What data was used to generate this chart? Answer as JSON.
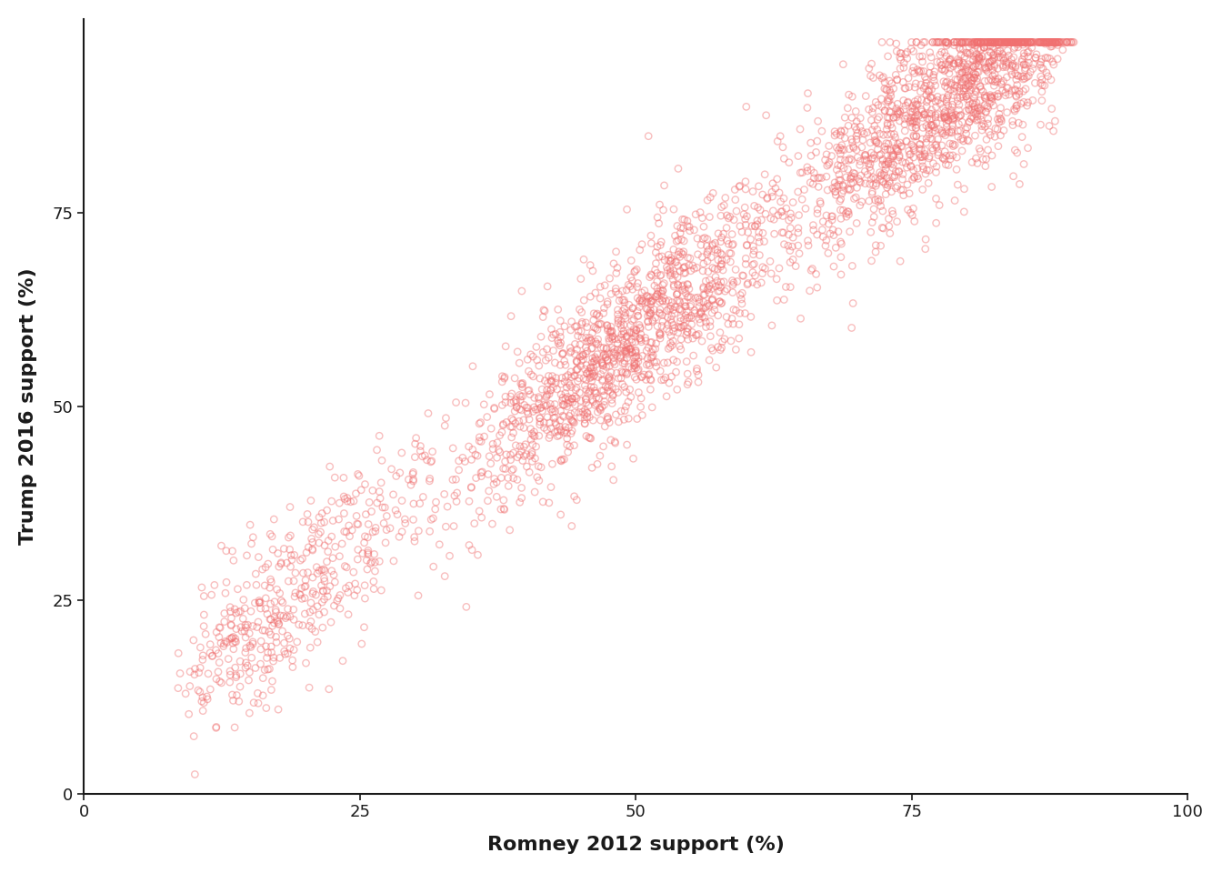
{
  "xlabel": "Romney 2012 support (%)",
  "ylabel": "Trump 2016 support (%)",
  "xlim": [
    0,
    100
  ],
  "ylim": [
    0,
    100
  ],
  "xticks": [
    0,
    25,
    50,
    75,
    100
  ],
  "yticks": [
    0,
    25,
    50,
    75
  ],
  "point_color": "#F07070",
  "point_alpha": 0.45,
  "point_size": 28,
  "point_linewidth": 1.0,
  "n_points": 3111,
  "seed": 42,
  "slope": 1.08,
  "intercept": 5.0,
  "noise": 5.5,
  "background_color": "#ffffff",
  "axis_color": "#1a1a1a",
  "tick_color": "#777777",
  "tick_fontsize": 13,
  "xlabel_fontsize": 16,
  "ylabel_fontsize": 16
}
